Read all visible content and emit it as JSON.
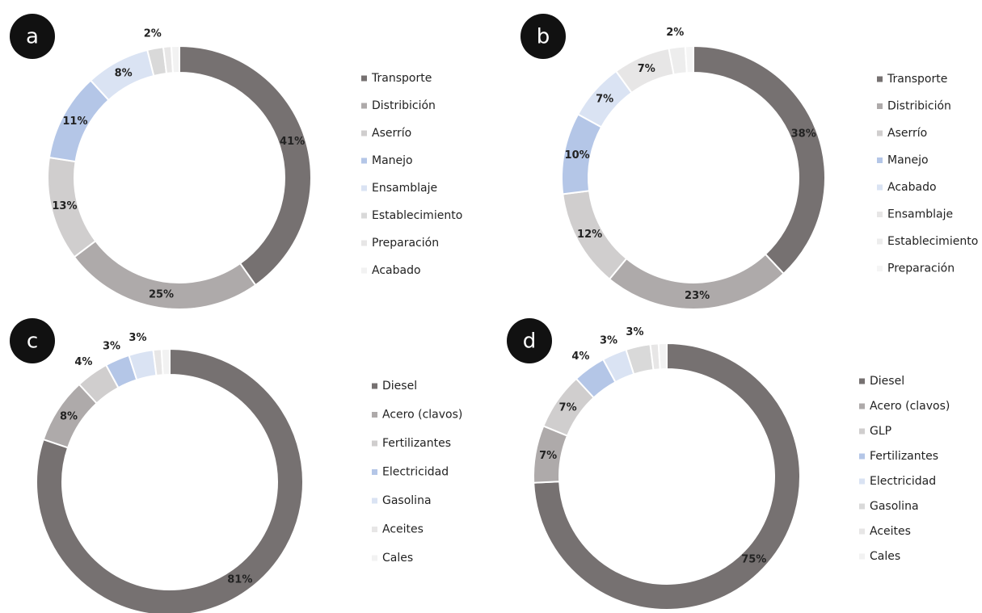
{
  "chart_data": [
    {
      "type": "pie",
      "panel": "a",
      "categories": [
        "Transporte",
        "Distribición",
        "Aserrío",
        "Manejo",
        "Ensamblaje",
        "Establecimiento",
        "Preparación",
        "Acabado"
      ],
      "values": [
        41,
        25,
        13,
        11,
        8,
        2,
        1,
        1
      ],
      "value_labels": [
        "41%",
        "25%",
        "13%",
        "11%",
        "8%",
        "2%",
        null,
        null
      ],
      "colors": [
        "#767171",
        "#aeaaaa",
        "#d0cece",
        "#b4c6e7",
        "#dae3f3",
        "#d9d9d9",
        "#e7e6e6",
        "#f2f2f2"
      ]
    },
    {
      "type": "pie",
      "panel": "b",
      "categories": [
        "Transporte",
        "Distribición",
        "Aserrío",
        "Manejo",
        "Acabado",
        "Ensamblaje",
        "Establecimiento",
        "Preparación"
      ],
      "values": [
        38,
        23,
        12,
        10,
        7,
        7,
        2,
        1
      ],
      "value_labels": [
        "38%",
        "23%",
        "12%",
        "10%",
        "7%",
        "7%",
        "2%",
        null
      ],
      "colors": [
        "#767171",
        "#aeaaaa",
        "#d0cece",
        "#b4c6e7",
        "#dae3f3",
        "#e7e6e6",
        "#ededed",
        "#f5f5f5"
      ]
    },
    {
      "type": "pie",
      "panel": "c",
      "categories": [
        "Diesel",
        "Acero (clavos)",
        "Fertilizantes",
        "Electricidad",
        "Gasolina",
        "Aceites",
        "Cales"
      ],
      "values": [
        81,
        8,
        4,
        3,
        3,
        1,
        1
      ],
      "value_labels": [
        "81%",
        "8%",
        "4%",
        "3%",
        "3%",
        null,
        null
      ],
      "colors": [
        "#767171",
        "#aeaaaa",
        "#d0cece",
        "#b4c6e7",
        "#dae3f3",
        "#e7e6e6",
        "#f2f2f2"
      ]
    },
    {
      "type": "pie",
      "panel": "d",
      "categories": [
        "Diesel",
        "Acero (clavos)",
        "GLP",
        "Fertilizantes",
        "Electricidad",
        "Gasolina",
        "Aceites",
        "Cales"
      ],
      "values": [
        75,
        7,
        7,
        4,
        3,
        3,
        1,
        1
      ],
      "value_labels": [
        "75%",
        "7%",
        "7%",
        "4%",
        "3%",
        "3%",
        null,
        null
      ],
      "colors": [
        "#767171",
        "#aeaaaa",
        "#d0cece",
        "#b4c6e7",
        "#dae3f3",
        "#d9d9d9",
        "#e7e6e6",
        "#f2f2f2"
      ]
    }
  ]
}
